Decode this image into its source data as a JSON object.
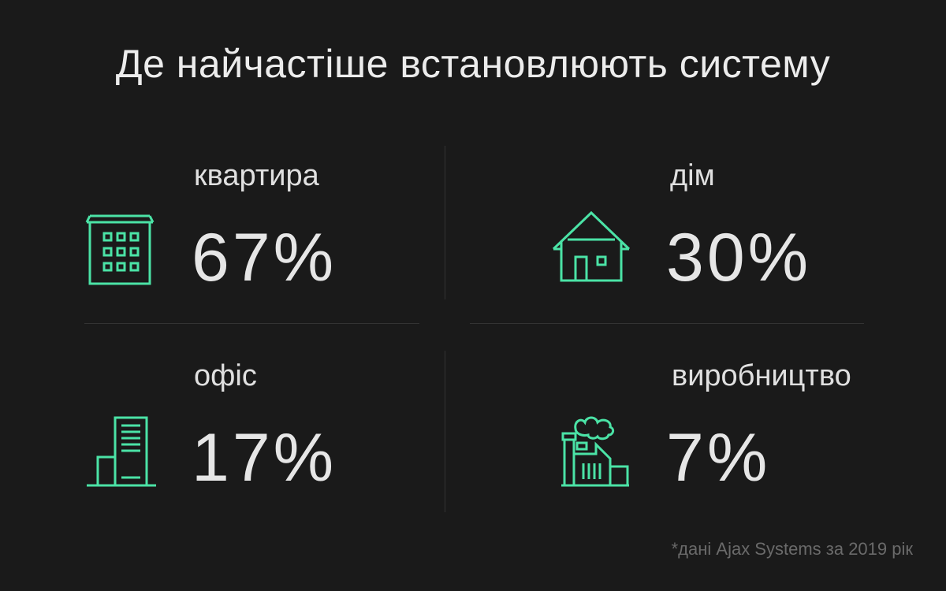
{
  "title": "Де найчастіше встановлюють систему",
  "accent_color": "#4be3a6",
  "stats": [
    {
      "label": "квартира",
      "value": "67%",
      "icon": "apartment-building-icon"
    },
    {
      "label": "дім",
      "value": "30%",
      "icon": "house-icon"
    },
    {
      "label": "офіс",
      "value": "17%",
      "icon": "office-building-icon"
    },
    {
      "label": "виробництво",
      "value": "7%",
      "icon": "factory-icon"
    }
  ],
  "footnote": "*дані Ajax Systems за 2019 рік"
}
